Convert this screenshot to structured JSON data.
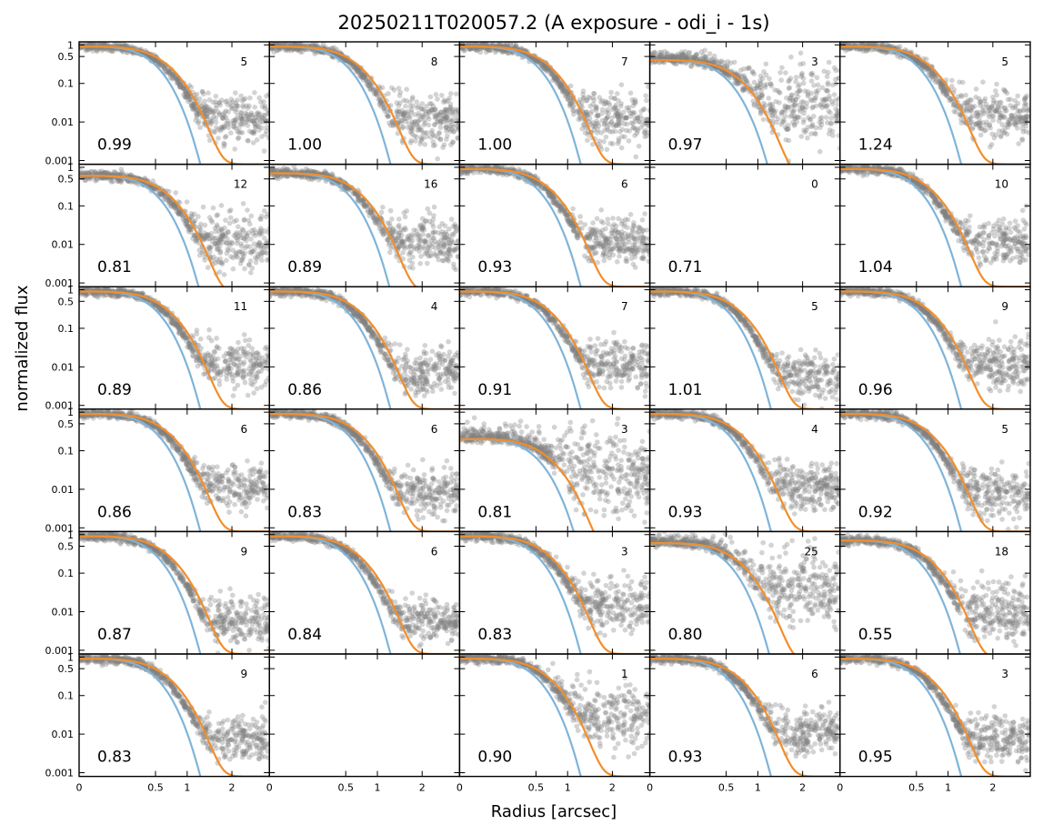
{
  "chart_data": {
    "type": "scatter",
    "title": "20250211T020057.2 (A exposure - odi_i - 1s)",
    "xlabel": "Radius [arcsec]",
    "ylabel": "normalized flux",
    "rows": 6,
    "cols": 5,
    "x_scale": "power 0.5 (sqrt)",
    "y_scale": "log",
    "xlim": [
      0,
      3.1
    ],
    "ylim": [
      0.0008,
      1.2
    ],
    "x_ticks": [
      0,
      0.5,
      1,
      2
    ],
    "x_tick_labels": [
      "0",
      "0.5",
      "1",
      "2"
    ],
    "y_ticks": [
      0.001,
      0.01,
      0.1,
      0.5,
      1
    ],
    "y_tick_labels": [
      "0.001",
      "0.01",
      "0.1",
      "0.5",
      "1"
    ],
    "series": [
      {
        "name": "",
        "color": "#808080",
        "kind": "points"
      },
      {
        "name": "",
        "color": "#7fb4d9",
        "kind": "line"
      },
      {
        "name": "",
        "color": "#f28e2b",
        "kind": "line"
      }
    ],
    "panels": [
      {
        "fwhm": "0.99",
        "count": "5",
        "empty": false,
        "amp": 0.9,
        "tail": 0.012,
        "spread": 1.0
      },
      {
        "fwhm": "1.00",
        "count": "8",
        "empty": false,
        "amp": 0.9,
        "tail": 0.012,
        "spread": 1.1
      },
      {
        "fwhm": "1.00",
        "count": "7",
        "empty": false,
        "amp": 0.9,
        "tail": 0.012,
        "spread": 1.1
      },
      {
        "fwhm": "0.97",
        "count": "3",
        "empty": false,
        "amp": 0.4,
        "tail": 0.03,
        "spread": 1.6
      },
      {
        "fwhm": "1.24",
        "count": "5",
        "empty": false,
        "amp": 0.9,
        "tail": 0.015,
        "spread": 1.1
      },
      {
        "fwhm": "0.81",
        "count": "12",
        "empty": false,
        "amp": 0.6,
        "tail": 0.012,
        "spread": 1.2
      },
      {
        "fwhm": "0.89",
        "count": "16",
        "empty": false,
        "amp": 0.7,
        "tail": 0.012,
        "spread": 1.1
      },
      {
        "fwhm": "0.93",
        "count": "6",
        "empty": false,
        "amp": 0.9,
        "tail": 0.012,
        "spread": 1.0
      },
      {
        "fwhm": "0.71",
        "count": "0",
        "empty": true
      },
      {
        "fwhm": "1.04",
        "count": "10",
        "empty": false,
        "amp": 0.9,
        "tail": 0.012,
        "spread": 1.0
      },
      {
        "fwhm": "0.89",
        "count": "11",
        "empty": false,
        "amp": 0.9,
        "tail": 0.012,
        "spread": 1.0
      },
      {
        "fwhm": "0.86",
        "count": "4",
        "empty": false,
        "amp": 0.9,
        "tail": 0.008,
        "spread": 1.0
      },
      {
        "fwhm": "0.91",
        "count": "7",
        "empty": false,
        "amp": 0.9,
        "tail": 0.012,
        "spread": 1.0
      },
      {
        "fwhm": "1.01",
        "count": "5",
        "empty": false,
        "amp": 0.9,
        "tail": 0.006,
        "spread": 0.9
      },
      {
        "fwhm": "0.96",
        "count": "9",
        "empty": false,
        "amp": 0.9,
        "tail": 0.012,
        "spread": 1.0
      },
      {
        "fwhm": "0.86",
        "count": "6",
        "empty": false,
        "amp": 0.9,
        "tail": 0.012,
        "spread": 1.0
      },
      {
        "fwhm": "0.83",
        "count": "6",
        "empty": false,
        "amp": 0.9,
        "tail": 0.008,
        "spread": 1.0
      },
      {
        "fwhm": "0.81",
        "count": "3",
        "empty": false,
        "amp": 0.2,
        "tail": 0.03,
        "spread": 1.6
      },
      {
        "fwhm": "0.93",
        "count": "4",
        "empty": false,
        "amp": 0.9,
        "tail": 0.012,
        "spread": 1.0
      },
      {
        "fwhm": "0.92",
        "count": "5",
        "empty": false,
        "amp": 0.9,
        "tail": 0.008,
        "spread": 1.0
      },
      {
        "fwhm": "0.87",
        "count": "9",
        "empty": false,
        "amp": 0.9,
        "tail": 0.006,
        "spread": 1.0
      },
      {
        "fwhm": "0.84",
        "count": "6",
        "empty": false,
        "amp": 0.9,
        "tail": 0.006,
        "spread": 0.9
      },
      {
        "fwhm": "0.83",
        "count": "3",
        "empty": false,
        "amp": 0.9,
        "tail": 0.015,
        "spread": 1.1
      },
      {
        "fwhm": "0.80",
        "count": "25",
        "empty": false,
        "amp": 0.6,
        "tail": 0.04,
        "spread": 1.6
      },
      {
        "fwhm": "0.55",
        "count": "18",
        "empty": false,
        "amp": 0.7,
        "tail": 0.01,
        "spread": 1.3
      },
      {
        "fwhm": "0.83",
        "count": "9",
        "empty": false,
        "amp": 0.9,
        "tail": 0.008,
        "spread": 1.0
      },
      {
        "fwhm": "",
        "count": "",
        "empty": true
      },
      {
        "fwhm": "0.90",
        "count": "1",
        "empty": false,
        "amp": 0.9,
        "tail": 0.03,
        "spread": 1.3
      },
      {
        "fwhm": "0.93",
        "count": "6",
        "empty": false,
        "amp": 0.9,
        "tail": 0.012,
        "spread": 1.0
      },
      {
        "fwhm": "0.95",
        "count": "3",
        "empty": false,
        "amp": 0.9,
        "tail": 0.008,
        "spread": 1.0
      }
    ]
  }
}
